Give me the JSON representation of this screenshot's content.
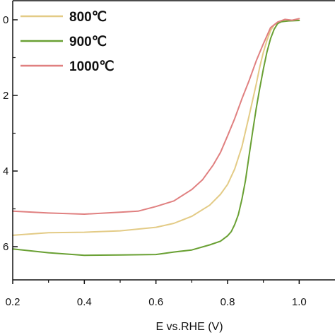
{
  "chart_data": {
    "type": "line",
    "xlabel": "E vs.RHE (V)",
    "ylabel": "",
    "xlim": [
      0.2,
      1.0
    ],
    "ylim": [
      -6.6,
      0.3
    ],
    "y_axis": "inverted",
    "x_ticks": [
      "0.2",
      "0.4",
      "0.6",
      "0.8",
      "1.0"
    ],
    "y_ticks": [
      "0",
      "2",
      "4",
      "6"
    ],
    "y_tick_values": [
      0,
      -2,
      -4,
      -6
    ],
    "legend_position": "top-left",
    "grid": false,
    "series": [
      {
        "name": "800℃",
        "color": "#e3cb86",
        "x": [
          0.2,
          0.3,
          0.4,
          0.5,
          0.6,
          0.65,
          0.7,
          0.75,
          0.78,
          0.8,
          0.82,
          0.84,
          0.86,
          0.88,
          0.89,
          0.9,
          0.91,
          0.92,
          0.93,
          0.94,
          0.95,
          0.97,
          1.0
        ],
        "y": [
          -5.7,
          -5.63,
          -5.62,
          -5.58,
          -5.49,
          -5.38,
          -5.2,
          -4.9,
          -4.62,
          -4.35,
          -3.95,
          -3.35,
          -2.55,
          -1.7,
          -1.25,
          -0.85,
          -0.55,
          -0.28,
          -0.14,
          -0.07,
          -0.04,
          -0.02,
          -0.02
        ]
      },
      {
        "name": "900℃",
        "color": "#69a033",
        "x": [
          0.2,
          0.3,
          0.4,
          0.5,
          0.6,
          0.65,
          0.7,
          0.75,
          0.78,
          0.8,
          0.81,
          0.82,
          0.83,
          0.84,
          0.85,
          0.86,
          0.87,
          0.88,
          0.89,
          0.9,
          0.91,
          0.92,
          0.93,
          0.94,
          0.95,
          0.97,
          1.0
        ],
        "y": [
          -6.05,
          -6.17,
          -6.22,
          -6.23,
          -6.2,
          -6.15,
          -6.08,
          -5.96,
          -5.85,
          -5.72,
          -5.6,
          -5.42,
          -5.15,
          -4.75,
          -4.25,
          -3.6,
          -2.95,
          -2.35,
          -1.8,
          -1.3,
          -0.85,
          -0.5,
          -0.25,
          -0.1,
          -0.05,
          -0.03,
          -0.02
        ]
      },
      {
        "name": "1000℃",
        "color": "#e08080",
        "x": [
          0.2,
          0.3,
          0.4,
          0.5,
          0.55,
          0.6,
          0.65,
          0.7,
          0.73,
          0.76,
          0.78,
          0.8,
          0.82,
          0.84,
          0.86,
          0.88,
          0.9,
          0.92,
          0.94,
          0.96,
          0.98,
          1.0
        ],
        "y": [
          -5.05,
          -5.12,
          -5.13,
          -5.1,
          -5.05,
          -4.95,
          -4.78,
          -4.5,
          -4.22,
          -3.85,
          -3.5,
          -3.08,
          -2.6,
          -2.1,
          -1.6,
          -1.1,
          -0.62,
          -0.22,
          -0.05,
          0.0,
          0.0,
          0.02
        ]
      }
    ]
  }
}
